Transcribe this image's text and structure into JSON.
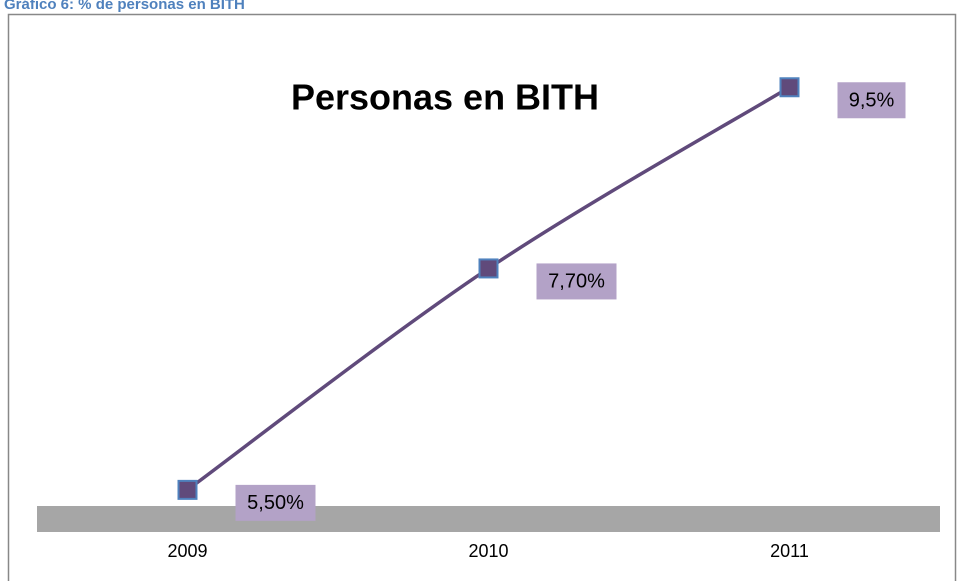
{
  "caption": "Gráfico 6: % de personas en BITH",
  "chart_data": {
    "type": "line",
    "title": "Personas en BITH",
    "categories": [
      "2009",
      "2010",
      "2011"
    ],
    "series": [
      {
        "color": "#604a7b",
        "values": [
          5.5,
          7.7,
          9.5
        ],
        "value_labels": [
          "5,50%",
          "7,70%",
          "9,5%"
        ]
      }
    ],
    "ylim": [
      5.3,
      9.9
    ]
  }
}
